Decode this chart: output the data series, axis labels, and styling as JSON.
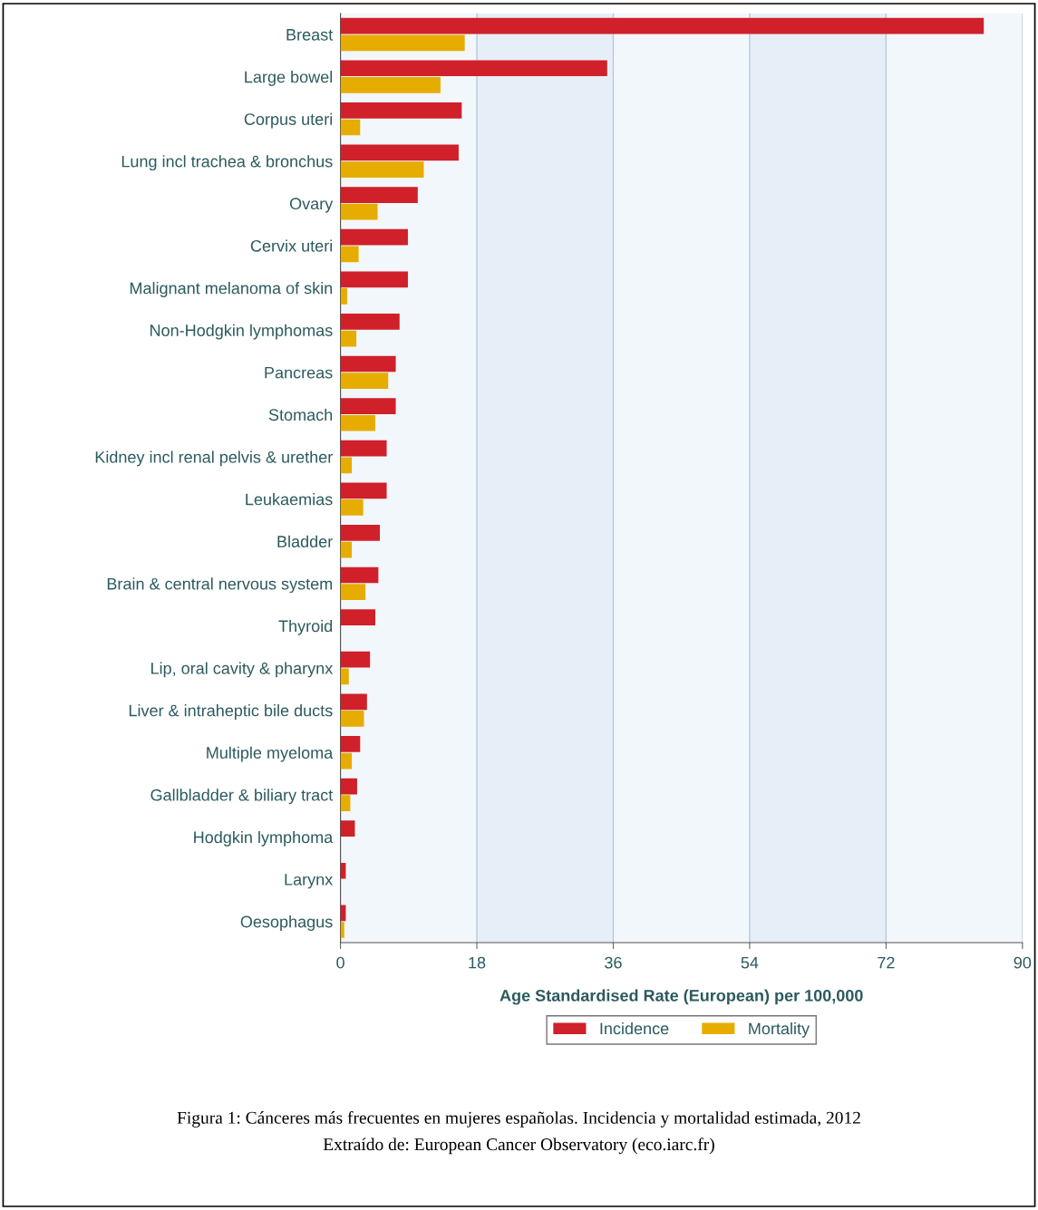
{
  "chart_data": {
    "type": "bar",
    "orientation": "horizontal",
    "categories": [
      "Breast",
      "Large bowel",
      "Corpus uteri",
      "Lung incl trachea & bronchus",
      "Ovary",
      "Cervix uteri",
      "Malignant melanoma of skin",
      "Non-Hodgkin lymphomas",
      "Pancreas",
      "Stomach",
      "Kidney incl renal pelvis & urether",
      "Leukaemias",
      "Bladder",
      "Brain & central nervous system",
      "Thyroid",
      "Lip, oral cavity & pharynx",
      "Liver & intraheptic bile ducts",
      "Multiple myeloma",
      "Gallbladder & biliary tract",
      "Hodgkin lymphoma",
      "Larynx",
      "Oesophagus"
    ],
    "series": [
      {
        "name": "Incidence",
        "color": "#d0202a",
        "values": [
          84.9,
          35.2,
          16.0,
          15.6,
          10.2,
          8.9,
          8.9,
          7.8,
          7.3,
          7.3,
          6.1,
          6.1,
          5.2,
          5.0,
          4.6,
          3.9,
          3.5,
          2.6,
          2.2,
          1.9,
          0.7,
          0.7
        ]
      },
      {
        "name": "Mortality",
        "color": "#e6ac00",
        "values": [
          16.4,
          13.2,
          2.6,
          11.0,
          4.9,
          2.4,
          0.9,
          2.1,
          6.3,
          4.6,
          1.5,
          3.0,
          1.5,
          3.3,
          null,
          1.1,
          3.1,
          1.5,
          1.3,
          null,
          null,
          0.5
        ]
      }
    ],
    "xlim": [
      0,
      90
    ],
    "xticks": [
      0,
      18,
      36,
      54,
      72,
      90
    ],
    "xlabel": "Age Standardised Rate (European) per 100,000",
    "grid": "x",
    "legend": "bottom",
    "annotations": [
      "Figura 1: Cánceres más frecuentes en mujeres españolas. Incidencia y mortalidad estimada, 2012",
      "Extraído de: European Cancer Observatory (eco.iarc.fr)"
    ]
  }
}
